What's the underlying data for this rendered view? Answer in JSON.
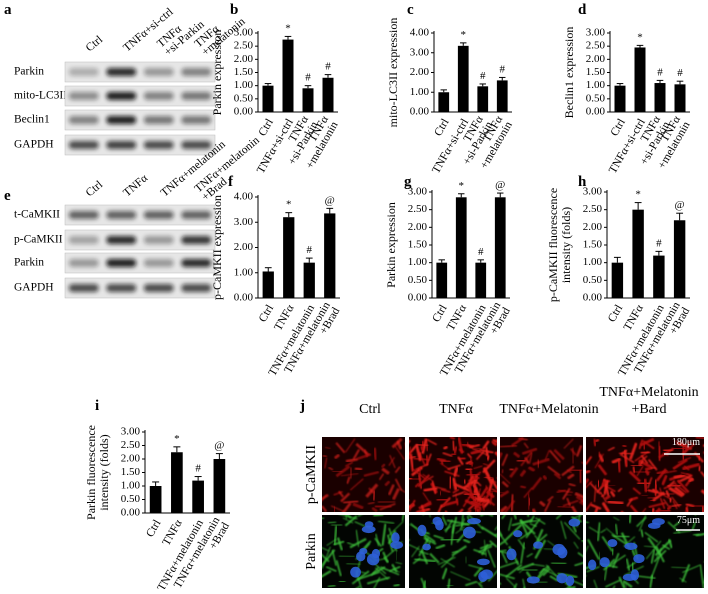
{
  "blots": [
    {
      "panel_label": "a",
      "lanes": [
        [
          "Ctrl"
        ],
        [
          "TNFα+si-ctrl"
        ],
        [
          "TNFα",
          "+si-Parkin"
        ],
        [
          "TNFα",
          "+melatonin"
        ]
      ],
      "rows": [
        "Parkin",
        "mito-LC3II",
        "Beclin1",
        "GAPDH"
      ]
    },
    {
      "panel_label": "e",
      "lanes": [
        [
          "Ctrl"
        ],
        [
          "TNFα"
        ],
        [
          "TNFα+melatonin"
        ],
        [
          "TNFα+melatonin",
          "+Brad"
        ]
      ],
      "rows": [
        "t-CaMKII",
        "p-CaMKII",
        "Parkin",
        "GAPDH"
      ]
    }
  ],
  "chart_data": [
    {
      "type": "bar",
      "panel_label": "b",
      "y_label": [
        "Parkin expression"
      ],
      "categories": [
        [
          "Ctrl"
        ],
        [
          "TNFα+si-ctrl"
        ],
        [
          "TNFα",
          "+si-Parkin"
        ],
        [
          "TNFα",
          "+melatonin"
        ]
      ],
      "values": [
        1.0,
        2.75,
        0.9,
        1.3
      ],
      "errors": [
        0.08,
        0.12,
        0.1,
        0.12
      ],
      "annotations": [
        null,
        "*",
        "#",
        "#"
      ],
      "color": "#000000",
      "ylim": [
        0,
        3
      ],
      "yticks": [
        {
          "value": 0,
          "label": "0.00"
        },
        {
          "value": 0.5,
          "label": "0.50"
        },
        {
          "value": 1,
          "label": "1.00"
        },
        {
          "value": 1.5,
          "label": "1.50"
        },
        {
          "value": 2,
          "label": "2.00"
        },
        {
          "value": 2.5,
          "label": "2.50"
        },
        {
          "value": 3,
          "label": "3.00"
        }
      ]
    },
    {
      "type": "bar",
      "panel_label": "c",
      "y_label": [
        "mito-LC3II expression"
      ],
      "categories": [
        [
          "Ctrl"
        ],
        [
          "TNFα+si-ctrl"
        ],
        [
          "TNFα",
          "+si-Parkin"
        ],
        [
          "TNFα",
          "+melatonin"
        ]
      ],
      "values": [
        1.0,
        3.35,
        1.3,
        1.6
      ],
      "errors": [
        0.12,
        0.15,
        0.12,
        0.15
      ],
      "annotations": [
        null,
        "*",
        "#",
        "#"
      ],
      "color": "#000000",
      "ylim": [
        0,
        4
      ],
      "yticks": [
        {
          "value": 0,
          "label": "0.00"
        },
        {
          "value": 1,
          "label": "1.00"
        },
        {
          "value": 2,
          "label": "2.00"
        },
        {
          "value": 3,
          "label": "3.00"
        },
        {
          "value": 4,
          "label": "4.00"
        }
      ]
    },
    {
      "type": "bar",
      "panel_label": "d",
      "y_label": [
        "Beclin1 expression"
      ],
      "categories": [
        [
          "Ctrl"
        ],
        [
          "TNFα+si-ctrl"
        ],
        [
          "TNFα",
          "+si-Parkin"
        ],
        [
          "TNFα",
          "+melatonin"
        ]
      ],
      "values": [
        1.0,
        2.45,
        1.1,
        1.05
      ],
      "errors": [
        0.08,
        0.08,
        0.1,
        0.12
      ],
      "annotations": [
        null,
        "*",
        "#",
        "#"
      ],
      "color": "#000000",
      "ylim": [
        0,
        3
      ],
      "yticks": [
        {
          "value": 0,
          "label": "0.00"
        },
        {
          "value": 0.5,
          "label": "0.50"
        },
        {
          "value": 1,
          "label": "1.00"
        },
        {
          "value": 1.5,
          "label": "1.50"
        },
        {
          "value": 2,
          "label": "2.00"
        },
        {
          "value": 2.5,
          "label": "2.50"
        },
        {
          "value": 3,
          "label": "3.00"
        }
      ]
    },
    {
      "type": "bar",
      "panel_label": "f",
      "y_label": [
        "p-CaMKII expression"
      ],
      "categories": [
        [
          "Ctrl"
        ],
        [
          "TNFα"
        ],
        [
          "TNFα+melatonin"
        ],
        [
          "TNFα+melatonin",
          "+Brad"
        ]
      ],
      "values": [
        1.05,
        3.2,
        1.4,
        3.35
      ],
      "errors": [
        0.15,
        0.18,
        0.18,
        0.2
      ],
      "annotations": [
        null,
        "*",
        "#",
        "@"
      ],
      "color": "#000000",
      "ylim": [
        0,
        4
      ],
      "yticks": [
        {
          "value": 0,
          "label": "0.00"
        },
        {
          "value": 1,
          "label": "1.00"
        },
        {
          "value": 2,
          "label": "2.00"
        },
        {
          "value": 3,
          "label": "3.00"
        },
        {
          "value": 4,
          "label": "4.00"
        }
      ]
    },
    {
      "type": "bar",
      "panel_label": "g",
      "y_label": [
        "Parkin expression"
      ],
      "categories": [
        [
          "Ctrl"
        ],
        [
          "TNFα"
        ],
        [
          "TNFα+melatonin"
        ],
        [
          "TNFα+melatonin",
          "+Brad"
        ]
      ],
      "values": [
        1.0,
        2.85,
        1.0,
        2.85
      ],
      "errors": [
        0.08,
        0.1,
        0.08,
        0.12
      ],
      "annotations": [
        null,
        "*",
        "#",
        "@"
      ],
      "color": "#000000",
      "ylim": [
        0,
        3
      ],
      "yticks": [
        {
          "value": 0,
          "label": "0.00"
        },
        {
          "value": 0.5,
          "label": "0.50"
        },
        {
          "value": 1,
          "label": "1.00"
        },
        {
          "value": 1.5,
          "label": "1.50"
        },
        {
          "value": 2,
          "label": "2.00"
        },
        {
          "value": 2.5,
          "label": "2.50"
        },
        {
          "value": 3,
          "label": "3.00"
        }
      ]
    },
    {
      "type": "bar",
      "panel_label": "h",
      "y_label": [
        "p-CaMKII fluorescence",
        "intensity (folds)"
      ],
      "categories": [
        [
          "Ctrl"
        ],
        [
          "TNFα"
        ],
        [
          "TNFα+melatonin"
        ],
        [
          "TNFα+melatonin",
          "+Brad"
        ]
      ],
      "values": [
        1.0,
        2.5,
        1.2,
        2.2
      ],
      "errors": [
        0.15,
        0.2,
        0.12,
        0.2
      ],
      "annotations": [
        null,
        "*",
        "#",
        "@"
      ],
      "color": "#000000",
      "ylim": [
        0,
        3
      ],
      "yticks": [
        {
          "value": 0,
          "label": "0.00"
        },
        {
          "value": 0.5,
          "label": "0.50"
        },
        {
          "value": 1,
          "label": "1.00"
        },
        {
          "value": 1.5,
          "label": "1.50"
        },
        {
          "value": 2,
          "label": "2.00"
        },
        {
          "value": 2.5,
          "label": "2.50"
        },
        {
          "value": 3,
          "label": "3.00"
        }
      ]
    },
    {
      "type": "bar",
      "panel_label": "i",
      "y_label": [
        "Parkin fluorescence",
        "intensity (folds)"
      ],
      "categories": [
        [
          "Ctrl"
        ],
        [
          "TNFα"
        ],
        [
          "TNFα+melatonin"
        ],
        [
          "TNFα+melatonin",
          "+Brad"
        ]
      ],
      "values": [
        1.0,
        2.25,
        1.2,
        2.0
      ],
      "errors": [
        0.15,
        0.2,
        0.15,
        0.2
      ],
      "annotations": [
        null,
        "*",
        "#",
        "@"
      ],
      "color": "#000000",
      "ylim": [
        0,
        3
      ],
      "yticks": [
        {
          "value": 0,
          "label": "0.00"
        },
        {
          "value": 0.5,
          "label": "0.50"
        },
        {
          "value": 1,
          "label": "1.00"
        },
        {
          "value": 1.5,
          "label": "1.50"
        },
        {
          "value": 2,
          "label": "2.00"
        },
        {
          "value": 2.5,
          "label": "2.50"
        },
        {
          "value": 3,
          "label": "3.00"
        }
      ]
    }
  ],
  "images": {
    "panel_label": "j",
    "columns": [
      [
        "Ctrl"
      ],
      [
        "TNFα"
      ],
      [
        "TNFα+Melatonin"
      ],
      [
        "TNFα+Melatonin",
        "+Bard"
      ]
    ],
    "rows": [
      "p-CaMKII",
      "Parkin"
    ],
    "scale_bars": [
      "180μm",
      "75μm"
    ]
  }
}
